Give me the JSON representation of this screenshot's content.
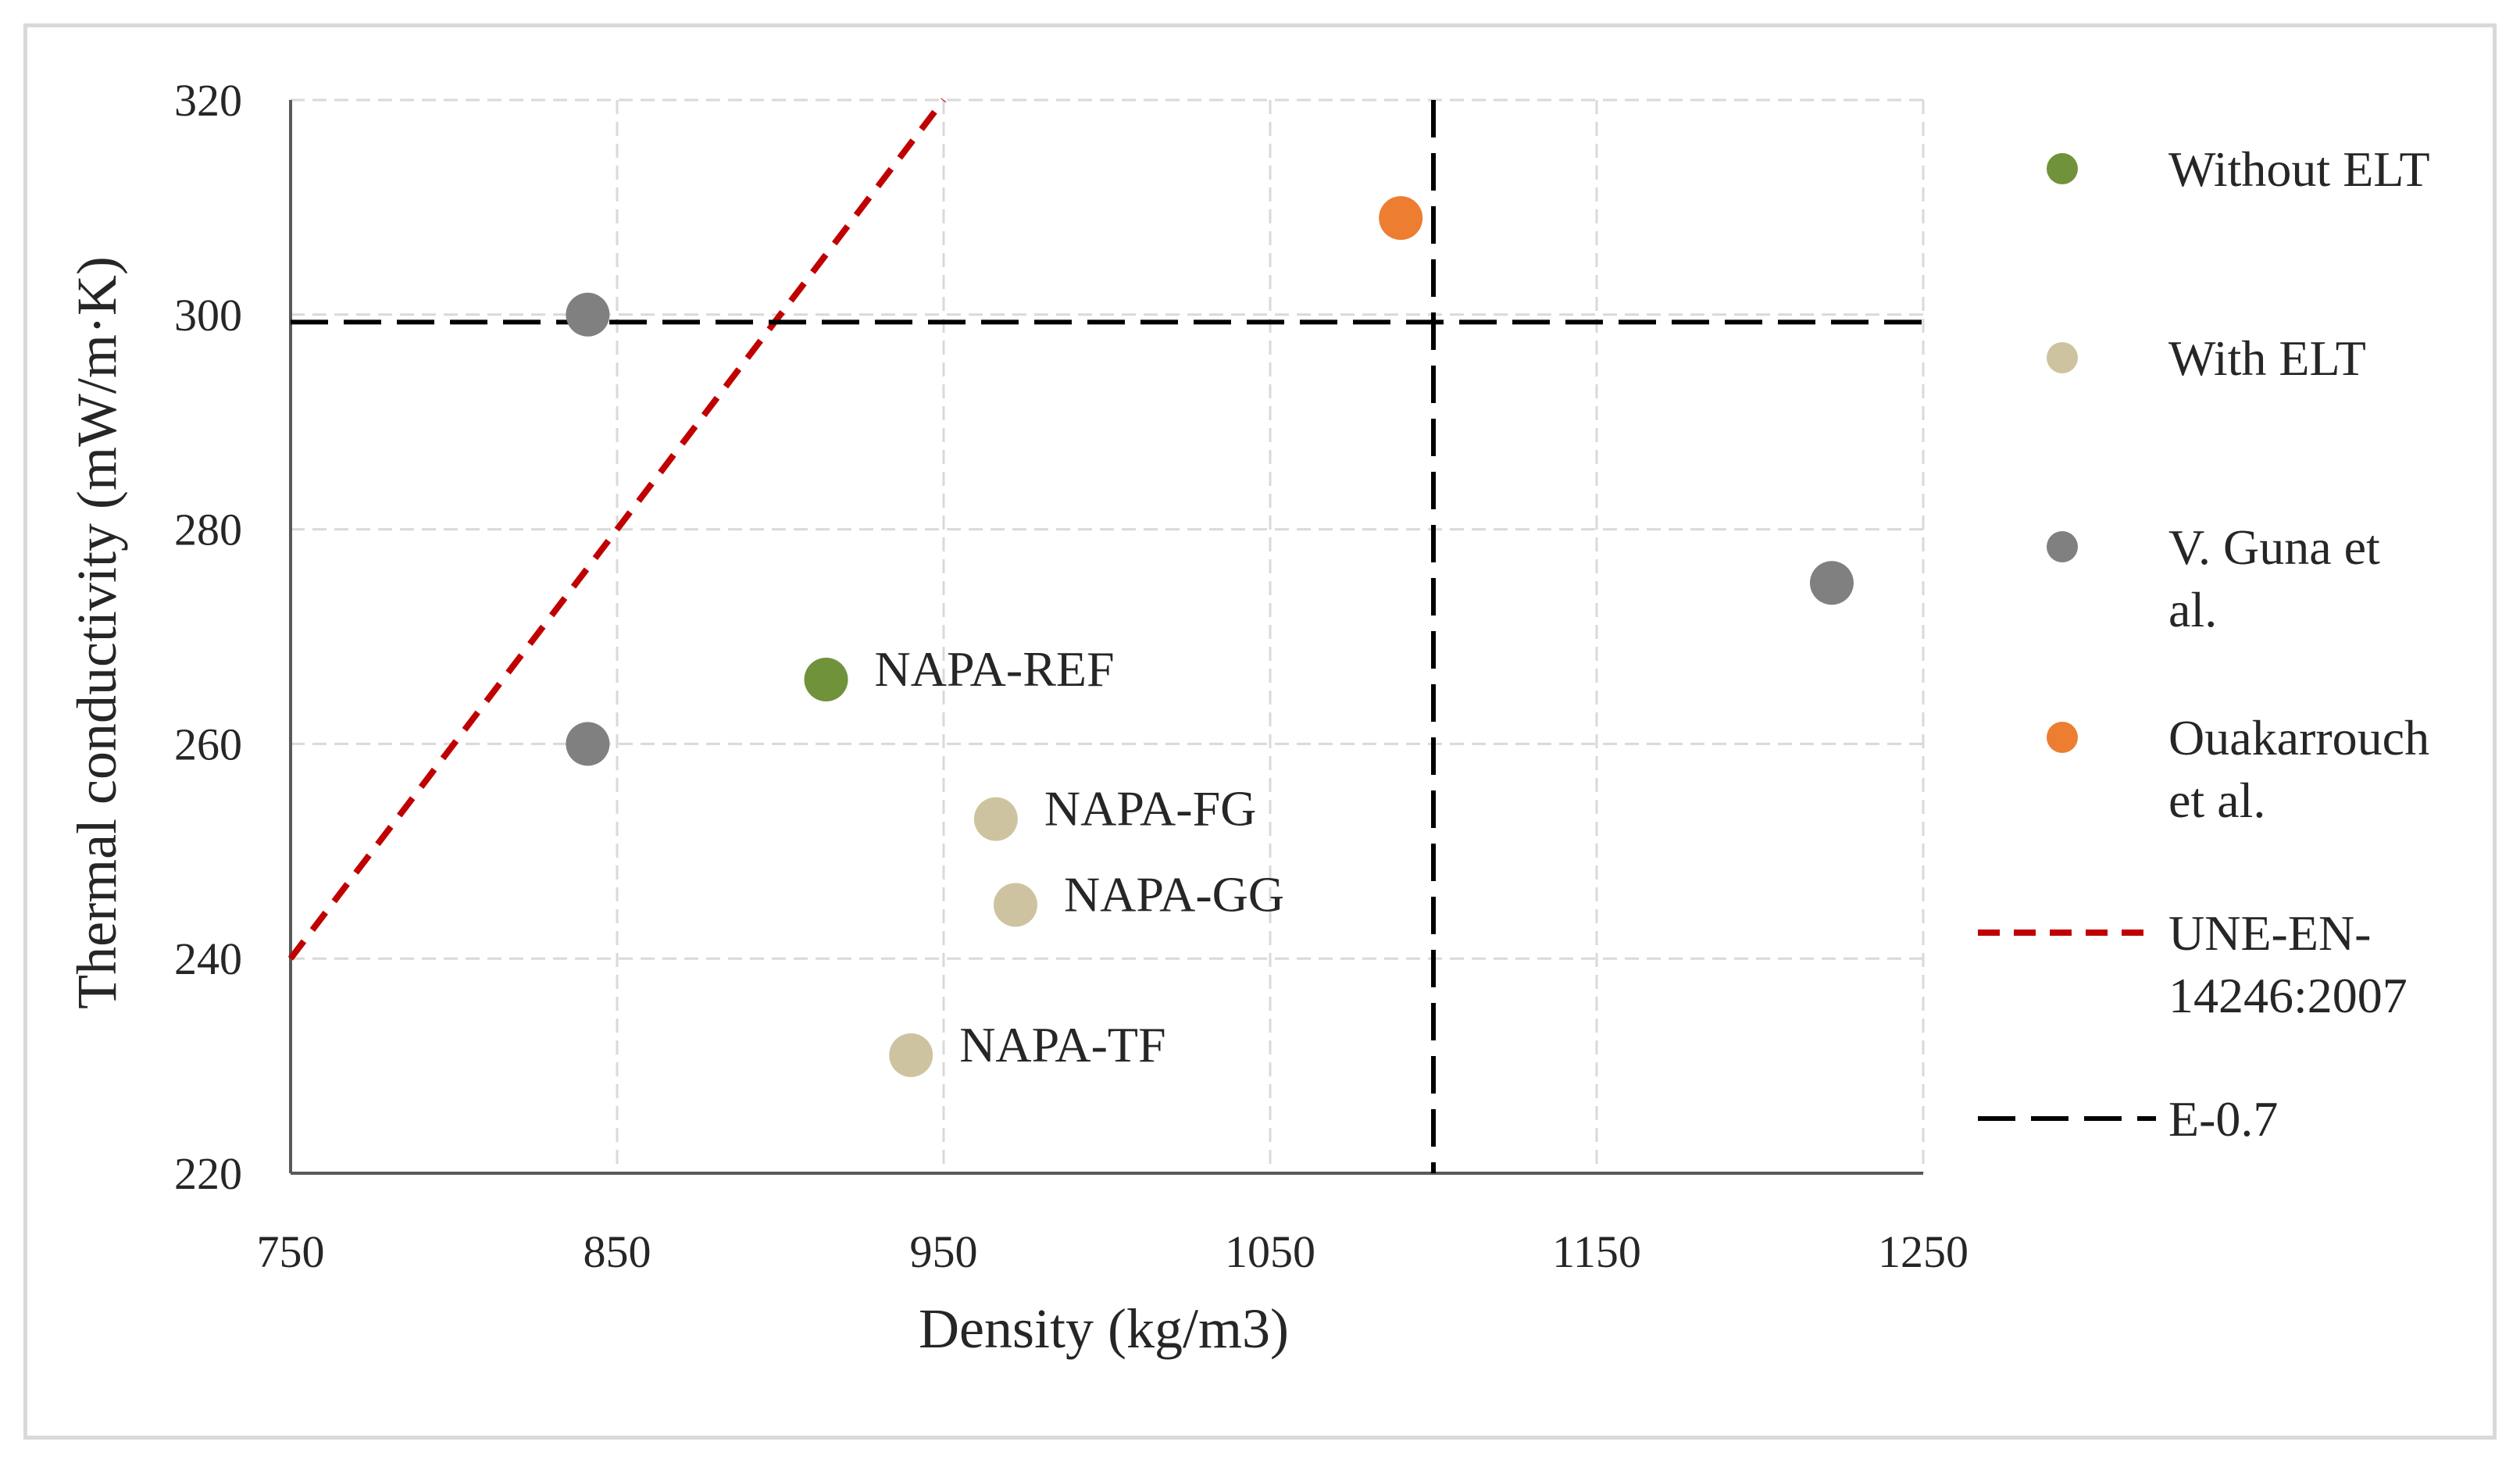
{
  "chart_data": {
    "type": "scatter",
    "title": "",
    "xlabel": "Density (kg/m3)",
    "ylabel": "Thermal conductivity (mW/m·K)",
    "xlim": [
      750,
      1250
    ],
    "ylim": [
      220,
      320
    ],
    "x_ticks": [
      750,
      850,
      950,
      1050,
      1150,
      1250
    ],
    "y_ticks": [
      220,
      240,
      260,
      280,
      300,
      320
    ],
    "grid": true,
    "legend_position": "right",
    "series": [
      {
        "name": "Without ELT",
        "kind": "points",
        "color": "#70923b",
        "points": [
          {
            "x": 914,
            "y": 266,
            "label": "NAPA-REF"
          }
        ]
      },
      {
        "name": "With ELT",
        "kind": "points",
        "color": "#cec3a0",
        "points": [
          {
            "x": 966,
            "y": 253,
            "label": "NAPA-FG"
          },
          {
            "x": 972,
            "y": 245,
            "label": "NAPA-GG"
          },
          {
            "x": 940,
            "y": 231,
            "label": "NAPA-TF"
          }
        ]
      },
      {
        "name": "V. Guna et al.",
        "legend_lines": [
          "V. Guna et",
          "al."
        ],
        "kind": "points",
        "color": "#808080",
        "points": [
          {
            "x": 841,
            "y": 300,
            "label": ""
          },
          {
            "x": 841,
            "y": 260,
            "label": ""
          },
          {
            "x": 1222,
            "y": 275,
            "label": ""
          }
        ]
      },
      {
        "name": "Ouakarrouch et al.",
        "legend_lines": [
          "Ouakarrouch",
          "et al."
        ],
        "kind": "points",
        "color": "#ed7d31",
        "points": [
          {
            "x": 1090,
            "y": 309,
            "label": ""
          }
        ]
      },
      {
        "name": "UNE-EN-14246:2007",
        "legend_lines": [
          "UNE-EN-",
          "14246:2007"
        ],
        "kind": "line",
        "dash": "short",
        "color": "#c00000",
        "points": [
          {
            "x": 750,
            "y": 240
          },
          {
            "x": 950,
            "y": 320
          }
        ]
      },
      {
        "name": "E-0.7",
        "legend_lines": [
          "E-0.7"
        ],
        "kind": "reference",
        "dash": "long",
        "color": "#000000",
        "vertical_x": 1100,
        "horizontal_y": 299.3
      }
    ]
  }
}
